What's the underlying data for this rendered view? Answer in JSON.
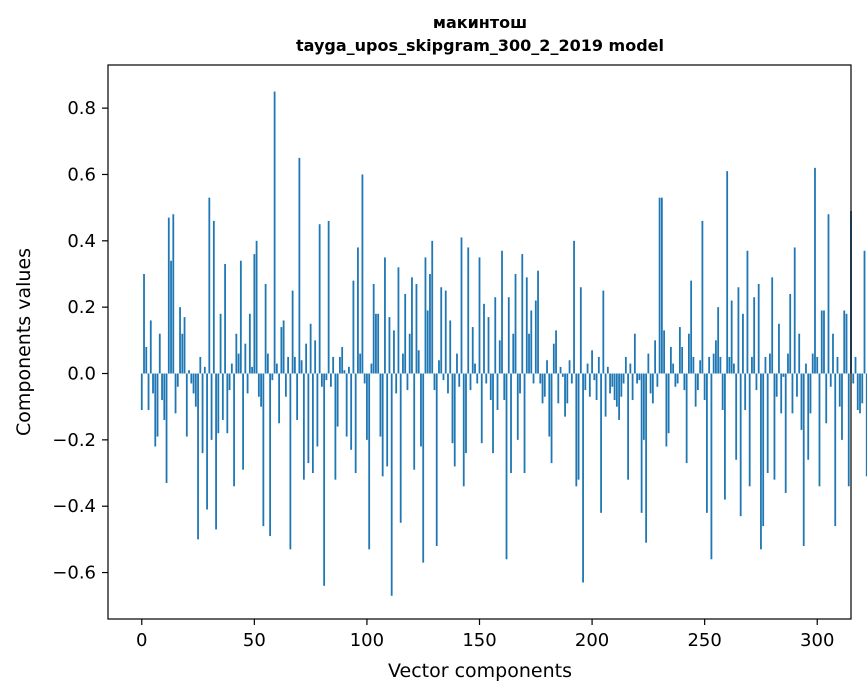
{
  "chart_data": {
    "type": "bar",
    "title_lines": [
      "макинтош",
      "tayga_upos_skipgram_300_2_2019 model"
    ],
    "xlabel": "Vector components",
    "ylabel": "Components values",
    "xlim": [
      -15,
      315
    ],
    "ylim": [
      -0.74,
      0.93
    ],
    "x_ticks": [
      0,
      50,
      100,
      150,
      200,
      250,
      300
    ],
    "x_tick_labels": [
      "0",
      "50",
      "100",
      "150",
      "200",
      "250",
      "300"
    ],
    "y_ticks": [
      -0.6,
      -0.4,
      -0.2,
      0.0,
      0.2,
      0.4,
      0.6,
      0.8
    ],
    "y_tick_labels": [
      "−0.6",
      "−0.4",
      "−0.2",
      "0.0",
      "0.2",
      "0.4",
      "0.6",
      "0.8"
    ],
    "bar_color": "#1f77b4",
    "bar_width": 0.8,
    "grid": false,
    "values": [
      -0.11,
      0.3,
      0.08,
      -0.11,
      0.16,
      -0.06,
      -0.22,
      -0.19,
      0.12,
      -0.08,
      -0.14,
      -0.33,
      0.47,
      0.34,
      0.48,
      -0.12,
      -0.04,
      0.2,
      0.12,
      0.17,
      -0.19,
      0.01,
      -0.03,
      -0.06,
      -0.1,
      -0.5,
      0.05,
      -0.24,
      0.02,
      -0.41,
      0.53,
      -0.2,
      0.46,
      -0.47,
      -0.18,
      0.18,
      -0.14,
      0.33,
      -0.18,
      -0.05,
      0.03,
      -0.34,
      0.12,
      0.06,
      0.34,
      -0.29,
      0.09,
      -0.06,
      0.18,
      0.02,
      0.36,
      0.4,
      -0.07,
      -0.1,
      -0.46,
      0.27,
      0.06,
      -0.49,
      -0.02,
      0.85,
      0.03,
      -0.15,
      0.14,
      0.16,
      -0.07,
      0.05,
      -0.53,
      0.25,
      0.05,
      -0.14,
      0.65,
      0.04,
      -0.32,
      0.09,
      -0.27,
      0.15,
      -0.3,
      0.1,
      -0.22,
      0.45,
      -0.04,
      -0.64,
      -0.02,
      0.46,
      -0.04,
      0.05,
      -0.32,
      -0.16,
      0.05,
      0.08,
      0.01,
      -0.19,
      0.02,
      -0.23,
      0.28,
      -0.3,
      0.38,
      0.06,
      0.6,
      -0.03,
      -0.2,
      -0.53,
      0.03,
      0.27,
      0.18,
      0.18,
      -0.19,
      -0.31,
      0.35,
      -0.28,
      0.17,
      -0.67,
      0.13,
      -0.06,
      0.32,
      -0.45,
      0.06,
      0.24,
      -0.05,
      0.12,
      0.29,
      -0.29,
      0.27,
      0.07,
      -0.22,
      -0.57,
      0.35,
      0.19,
      0.3,
      0.4,
      -0.05,
      -0.52,
      0.04,
      0.26,
      -0.02,
      0.25,
      -0.06,
      0.16,
      -0.21,
      -0.28,
      0.06,
      -0.04,
      0.41,
      -0.34,
      -0.24,
      0.38,
      -0.05,
      0.14,
      0.03,
      -0.03,
      0.35,
      -0.21,
      0.21,
      -0.03,
      0.17,
      -0.08,
      -0.24,
      0.23,
      -0.11,
      0.1,
      0.37,
      -0.08,
      -0.56,
      0.23,
      -0.3,
      0.12,
      0.3,
      -0.2,
      -0.06,
      0.36,
      -0.3,
      0.29,
      0.12,
      0.19,
      -0.03,
      0.22,
      0.31,
      -0.03,
      -0.09,
      -0.07,
      0.04,
      -0.19,
      -0.27,
      0.09,
      0.13,
      -0.09,
      0.02,
      -0.01,
      -0.13,
      -0.09,
      0.04,
      -0.03,
      0.4,
      -0.34,
      -0.32,
      0.26,
      -0.63,
      -0.05,
      0.03,
      -0.07,
      0.07,
      -0.02,
      -0.08,
      0.05,
      -0.42,
      0.25,
      -0.13,
      0.02,
      -0.06,
      -0.04,
      -0.08,
      -0.1,
      -0.14,
      -0.07,
      -0.03,
      0.05,
      -0.32,
      0.03,
      -0.08,
      0.12,
      -0.03,
      -0.02,
      -0.42,
      -0.2,
      -0.51,
      0.06,
      -0.06,
      -0.09,
      0.1,
      -0.04,
      0.53,
      0.53,
      0.13,
      -0.22,
      -0.18,
      0.08,
      0.03,
      -0.04,
      -0.03,
      0.14,
      0.08,
      -0.05,
      -0.27,
      0.12,
      0.28,
      0.05,
      -0.1,
      -0.05,
      0.04,
      0.46,
      -0.08,
      -0.42,
      0.05,
      -0.56,
      0.06,
      0.1,
      0.2,
      0.05,
      -0.11,
      -0.38,
      0.61,
      0.05,
      0.22,
      0.03,
      -0.26,
      0.26,
      -0.43,
      0.18,
      -0.11,
      0.37,
      -0.34,
      0.05,
      0.23,
      -0.05,
      0.27,
      -0.53,
      -0.46,
      0.05,
      -0.3,
      0.06,
      0.29,
      -0.32,
      -0.07,
      0.15,
      -0.12,
      -0.01,
      -0.36,
      0.06,
      0.24,
      -0.12,
      0.38,
      -0.07,
      0.12,
      -0.17,
      -0.52,
      0.03,
      -0.26,
      -0.12,
      0.06,
      0.62,
      0.05,
      -0.34,
      0.19,
      0.19,
      -0.15,
      0.48,
      -0.04,
      0.12,
      -0.46,
      0.05,
      -0.1,
      -0.2,
      0.19,
      0.18,
      -0.34,
      0.49,
      -0.03,
      0.05,
      -0.11,
      -0.12,
      -0.09,
      0.37,
      -0.31
    ]
  }
}
